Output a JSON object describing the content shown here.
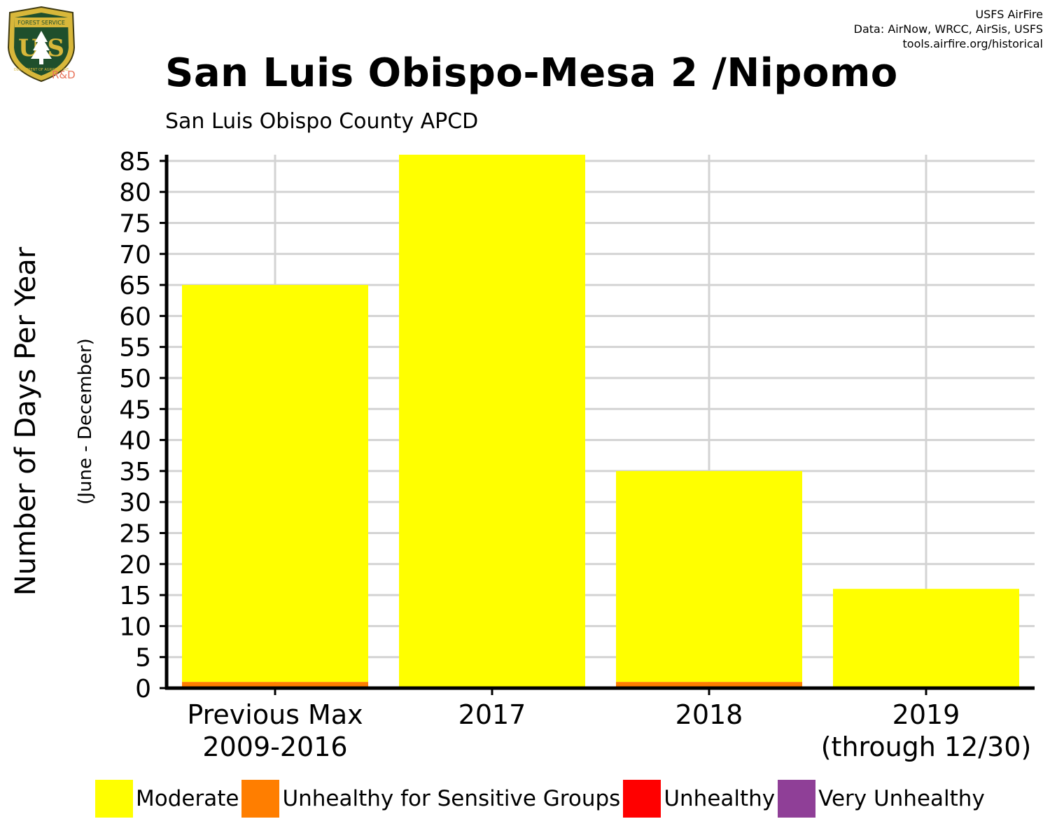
{
  "credits": {
    "line1": "USFS AirFire",
    "line2": "Data: AirNow, WRCC, AirSis, USFS",
    "line3": "tools.airfire.org/historical"
  },
  "logo": {
    "top_text": "FOREST SERVICE",
    "letters": "U S",
    "bottom_text": "DEPARTMENT OF AGRICULTURE",
    "suffix": "R&D"
  },
  "chart_data": {
    "type": "bar",
    "stacked": true,
    "title": "San Luis Obispo-Mesa 2 /Nipomo",
    "subtitle": "San Luis Obispo County APCD",
    "ylabel": "Number of Days Per Year",
    "ylabel_secondary": "(June - December)",
    "xlabel": "",
    "ylim": [
      0,
      86
    ],
    "yticks": [
      0,
      5,
      10,
      15,
      20,
      25,
      30,
      35,
      40,
      45,
      50,
      55,
      60,
      65,
      70,
      75,
      80,
      85
    ],
    "categories": [
      [
        "Previous Max",
        "2009-2016"
      ],
      [
        "2017"
      ],
      [
        "2018"
      ],
      [
        "2019",
        "(through 12/30)"
      ]
    ],
    "series": [
      {
        "name": "Unhealthy for Sensitive Groups",
        "color": "#ff7e00",
        "values": [
          1,
          0,
          1,
          0
        ]
      },
      {
        "name": "Moderate",
        "color": "#ffff00",
        "values": [
          64,
          86,
          34,
          16
        ]
      },
      {
        "name": "Unhealthy",
        "color": "#ff0000",
        "values": [
          0,
          0,
          0,
          0
        ]
      },
      {
        "name": "Very Unhealthy",
        "color": "#8f3f97",
        "values": [
          0,
          0,
          0,
          0
        ]
      }
    ],
    "legend": {
      "placement": "bottom",
      "items": [
        {
          "name": "Moderate",
          "color": "#ffff00"
        },
        {
          "name": "Unhealthy for Sensitive Groups",
          "color": "#ff7e00"
        },
        {
          "name": "Unhealthy",
          "color": "#ff0000"
        },
        {
          "name": "Very Unhealthy",
          "color": "#8f3f97"
        }
      ]
    },
    "grid": true,
    "gridColor": "#d3d3d3"
  }
}
